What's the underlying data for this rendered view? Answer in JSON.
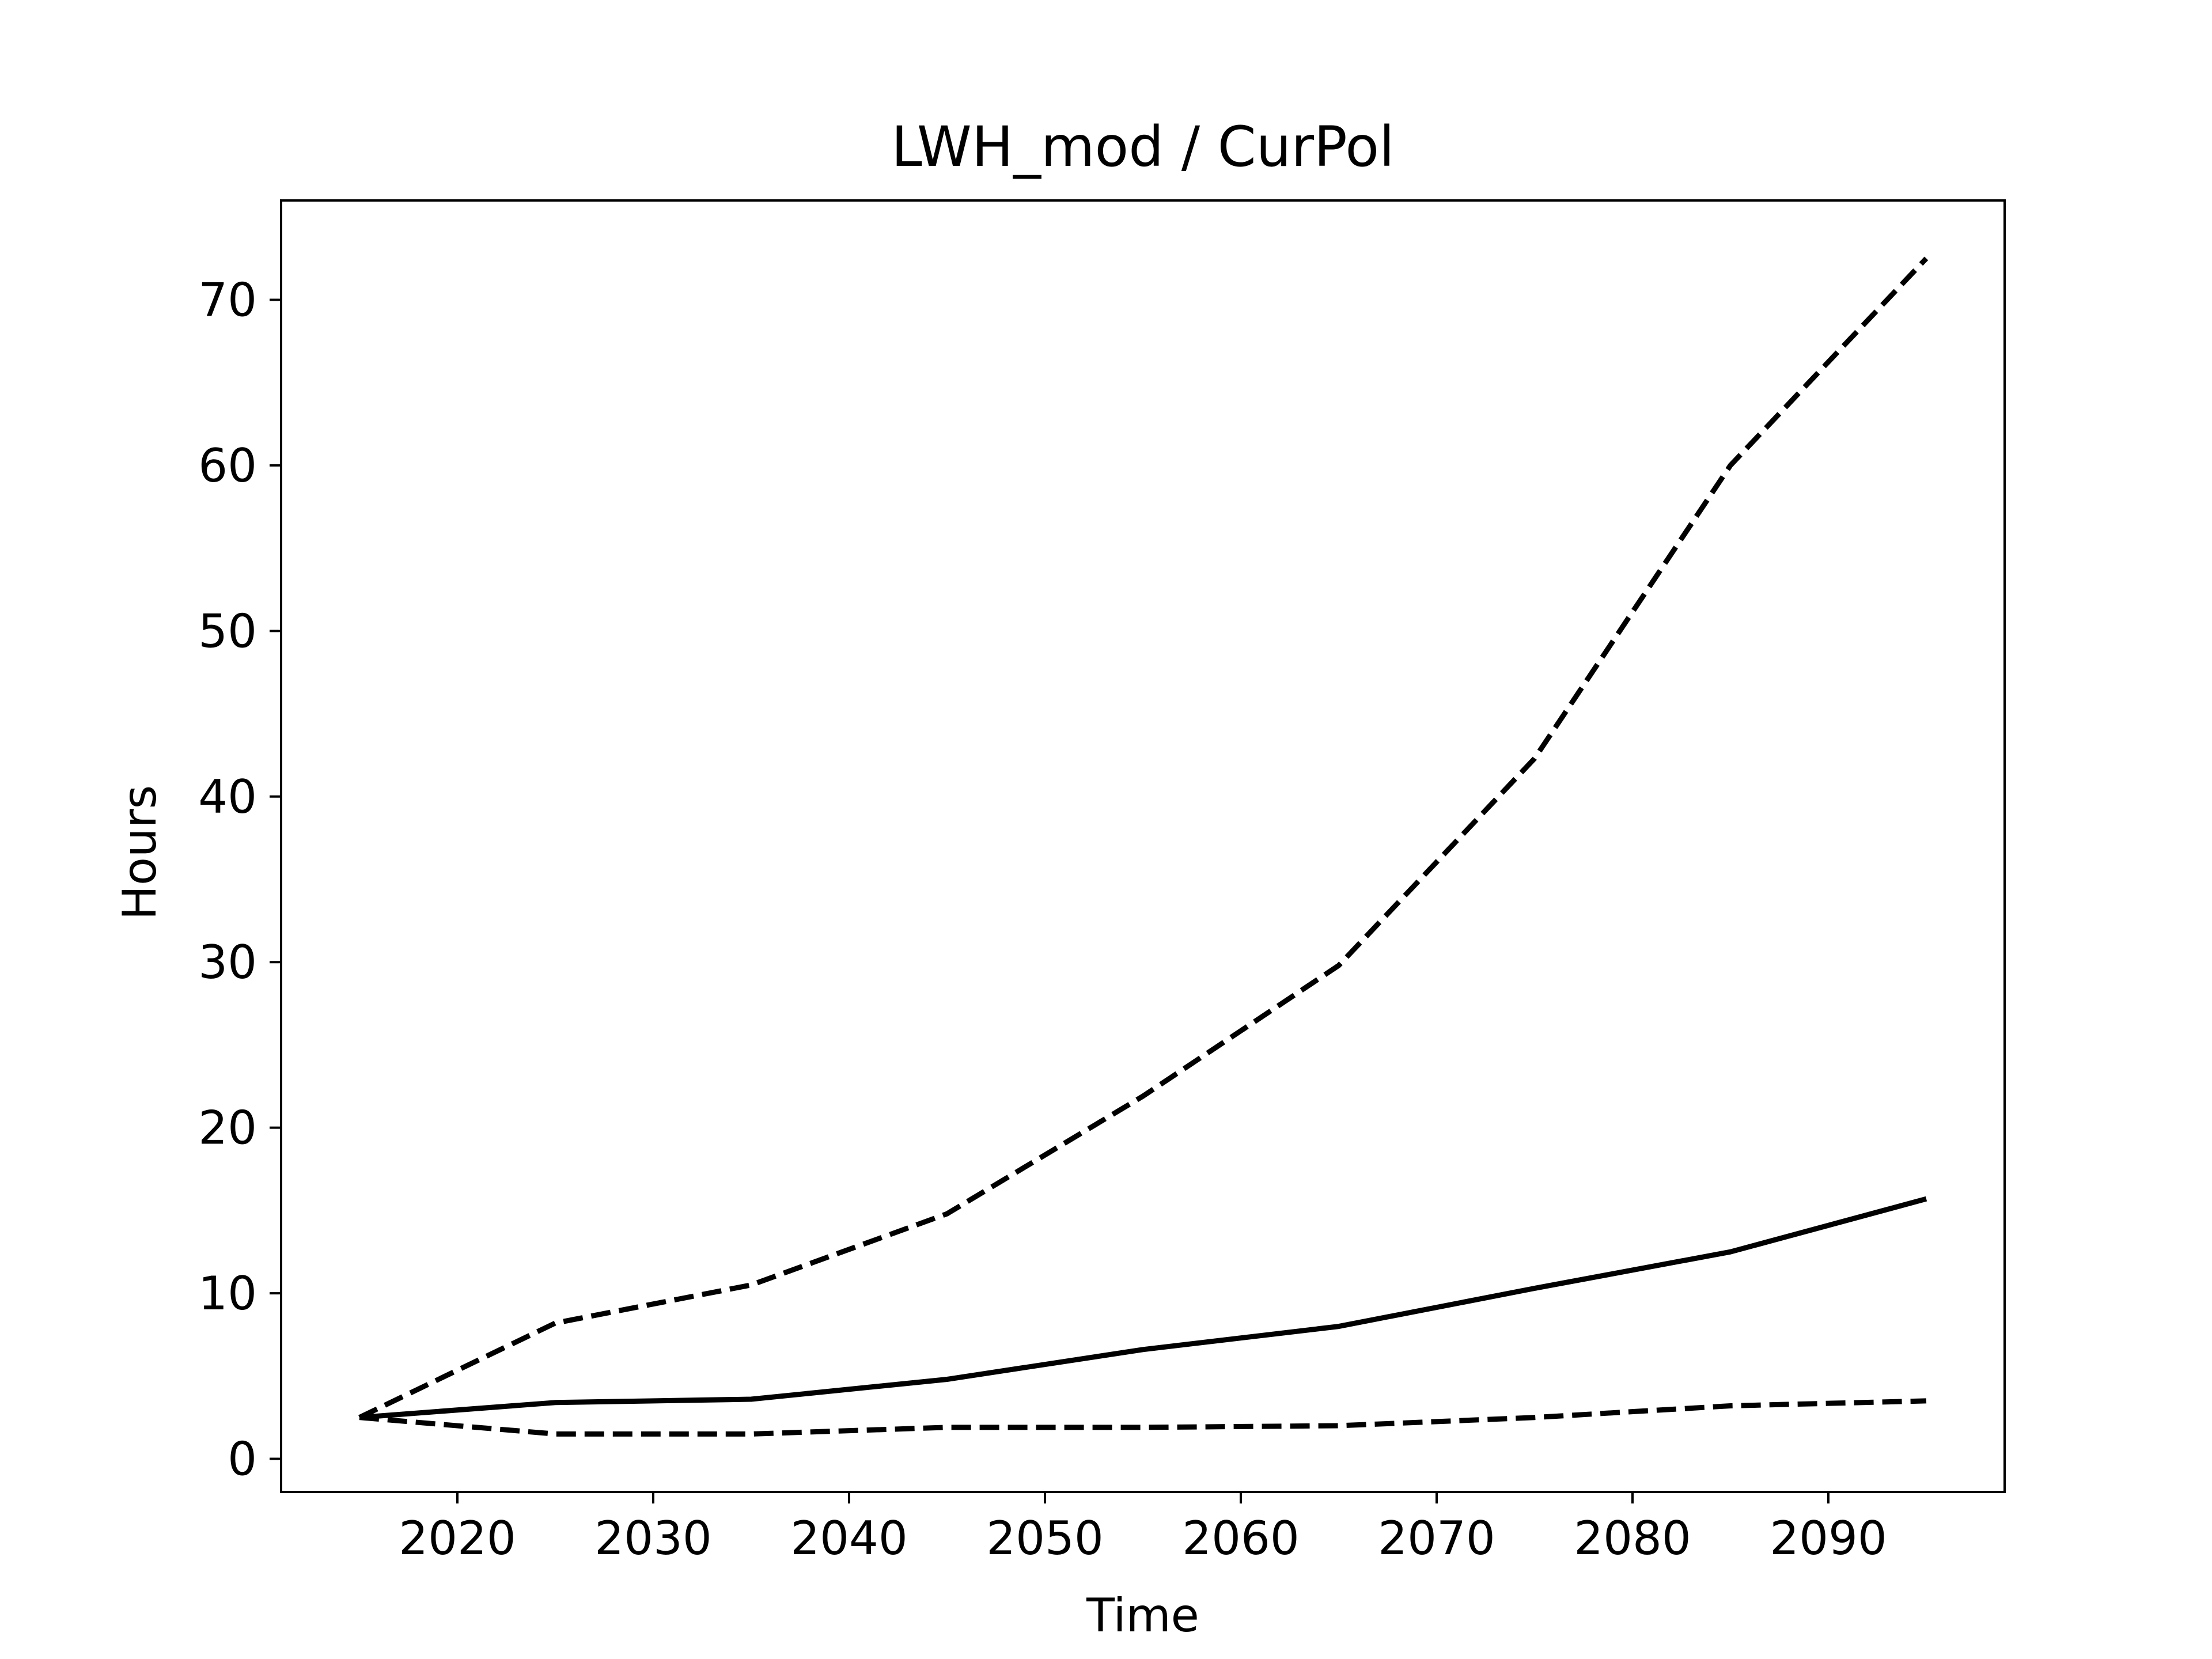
{
  "chart_data": {
    "type": "line",
    "title": "LWH_mod / CurPol",
    "xlabel": "Time",
    "ylabel": "Hours",
    "xlim": [
      2011,
      2099
    ],
    "ylim": [
      -2,
      76
    ],
    "xticks": [
      2020,
      2030,
      2040,
      2050,
      2060,
      2070,
      2080,
      2090
    ],
    "yticks": [
      0,
      10,
      20,
      30,
      40,
      50,
      60,
      70
    ],
    "grid": false,
    "legend": "none",
    "x": [
      2015,
      2025,
      2035,
      2045,
      2055,
      2065,
      2075,
      2085,
      2095
    ],
    "series": [
      {
        "style": "dashed",
        "color": "#000000",
        "values": [
          2.5,
          8.2,
          10.5,
          14.8,
          21.9,
          29.8,
          42.3,
          60.0,
          72.5
        ]
      },
      {
        "style": "solid",
        "color": "#000000",
        "values": [
          2.5,
          3.4,
          3.6,
          4.8,
          6.6,
          8.0,
          10.3,
          12.5,
          15.7
        ]
      },
      {
        "style": "dashed",
        "color": "#000000",
        "values": [
          2.5,
          1.5,
          1.5,
          1.9,
          1.9,
          2.0,
          2.5,
          3.2,
          3.5
        ]
      }
    ]
  }
}
